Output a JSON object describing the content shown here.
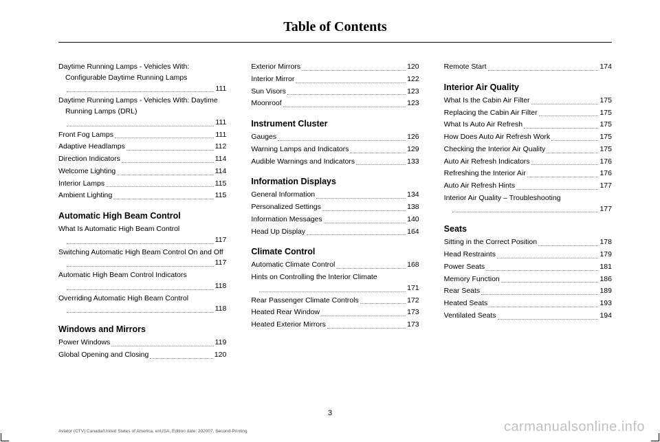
{
  "title": "Table of Contents",
  "page_number": "3",
  "footer": "Aviator (CTV) Canada/United States of America, enUSA, Edition date: 202007, Second-Printing",
  "watermark": "carmanualsonline.info",
  "columns": [
    [
      {
        "type": "entry",
        "label": "Daytime Running Lamps - Vehicles With: Configurable Daytime Running Lamps",
        "page": "111",
        "wrap": true
      },
      {
        "type": "entry",
        "label": "Daytime Running Lamps - Vehicles With: Daytime Running Lamps (DRL)",
        "page": "111",
        "wrap": true
      },
      {
        "type": "entry",
        "label": "Front Fog Lamps",
        "page": "111"
      },
      {
        "type": "entry",
        "label": "Adaptive Headlamps",
        "page": "112"
      },
      {
        "type": "entry",
        "label": "Direction Indicators",
        "page": "114"
      },
      {
        "type": "entry",
        "label": "Welcome Lighting",
        "page": "114"
      },
      {
        "type": "entry",
        "label": "Interior Lamps",
        "page": "115"
      },
      {
        "type": "entry",
        "label": "Ambient Lighting",
        "page": "115"
      },
      {
        "type": "section",
        "label": "Automatic High Beam Control"
      },
      {
        "type": "entry",
        "label": "What Is Automatic High Beam Control",
        "page": "117",
        "wrap": true
      },
      {
        "type": "entry",
        "label": "Switching Automatic High Beam Control On and Off",
        "page": "117",
        "wrap": true
      },
      {
        "type": "entry",
        "label": "Automatic High Beam Control Indicators",
        "page": "118",
        "wrap": true
      },
      {
        "type": "entry",
        "label": "Overriding Automatic High Beam Control",
        "page": "118",
        "wrap": true
      },
      {
        "type": "section",
        "label": "Windows and Mirrors"
      },
      {
        "type": "entry",
        "label": "Power Windows",
        "page": "119"
      },
      {
        "type": "entry",
        "label": "Global Opening and Closing",
        "page": "120"
      }
    ],
    [
      {
        "type": "entry",
        "label": "Exterior Mirrors",
        "page": "120"
      },
      {
        "type": "entry",
        "label": "Interior Mirror",
        "page": "122"
      },
      {
        "type": "entry",
        "label": "Sun Visors",
        "page": "123"
      },
      {
        "type": "entry",
        "label": "Moonroof",
        "page": "123"
      },
      {
        "type": "section",
        "label": "Instrument Cluster"
      },
      {
        "type": "entry",
        "label": "Gauges",
        "page": "126"
      },
      {
        "type": "entry",
        "label": "Warning Lamps and Indicators",
        "page": "129"
      },
      {
        "type": "entry",
        "label": "Audible Warnings and Indicators",
        "page": "133"
      },
      {
        "type": "section",
        "label": "Information Displays"
      },
      {
        "type": "entry",
        "label": "General Information",
        "page": "134"
      },
      {
        "type": "entry",
        "label": "Personalized Settings",
        "page": "138"
      },
      {
        "type": "entry",
        "label": "Information Messages",
        "page": "140"
      },
      {
        "type": "entry",
        "label": "Head Up Display",
        "page": "164"
      },
      {
        "type": "section",
        "label": "Climate Control"
      },
      {
        "type": "entry",
        "label": "Automatic Climate Control",
        "page": "168"
      },
      {
        "type": "entry",
        "label": "Hints on Controlling the Interior Climate",
        "page": "171",
        "wrap": true
      },
      {
        "type": "entry",
        "label": "Rear Passenger Climate Controls",
        "page": "172"
      },
      {
        "type": "entry",
        "label": "Heated Rear Window",
        "page": "173"
      },
      {
        "type": "entry",
        "label": "Heated Exterior Mirrors",
        "page": "173"
      }
    ],
    [
      {
        "type": "entry",
        "label": "Remote Start",
        "page": "174"
      },
      {
        "type": "section",
        "label": "Interior Air Quality"
      },
      {
        "type": "entry",
        "label": "What Is the Cabin Air Filter",
        "page": "175"
      },
      {
        "type": "entry",
        "label": "Replacing the Cabin Air Filter",
        "page": "175"
      },
      {
        "type": "entry",
        "label": "What Is Auto Air Refresh",
        "page": "175"
      },
      {
        "type": "entry",
        "label": "How Does Auto Air Refresh Work",
        "page": "175"
      },
      {
        "type": "entry",
        "label": "Checking the Interior Air Quality",
        "page": "175"
      },
      {
        "type": "entry",
        "label": "Auto Air Refresh Indicators",
        "page": "176"
      },
      {
        "type": "entry",
        "label": "Refreshing the Interior Air",
        "page": "176"
      },
      {
        "type": "entry",
        "label": "Auto Air Refresh Hints",
        "page": "177"
      },
      {
        "type": "entry",
        "label": "Interior Air Quality – Troubleshooting",
        "page": "177",
        "wrap": true
      },
      {
        "type": "section",
        "label": "Seats"
      },
      {
        "type": "entry",
        "label": "Sitting in the Correct Position",
        "page": "178"
      },
      {
        "type": "entry",
        "label": "Head Restraints",
        "page": "179"
      },
      {
        "type": "entry",
        "label": "Power Seats",
        "page": "181"
      },
      {
        "type": "entry",
        "label": "Memory Function",
        "page": "186"
      },
      {
        "type": "entry",
        "label": "Rear Seats",
        "page": "189"
      },
      {
        "type": "entry",
        "label": "Heated Seats",
        "page": "193"
      },
      {
        "type": "entry",
        "label": "Ventilated Seats",
        "page": "194"
      }
    ]
  ]
}
